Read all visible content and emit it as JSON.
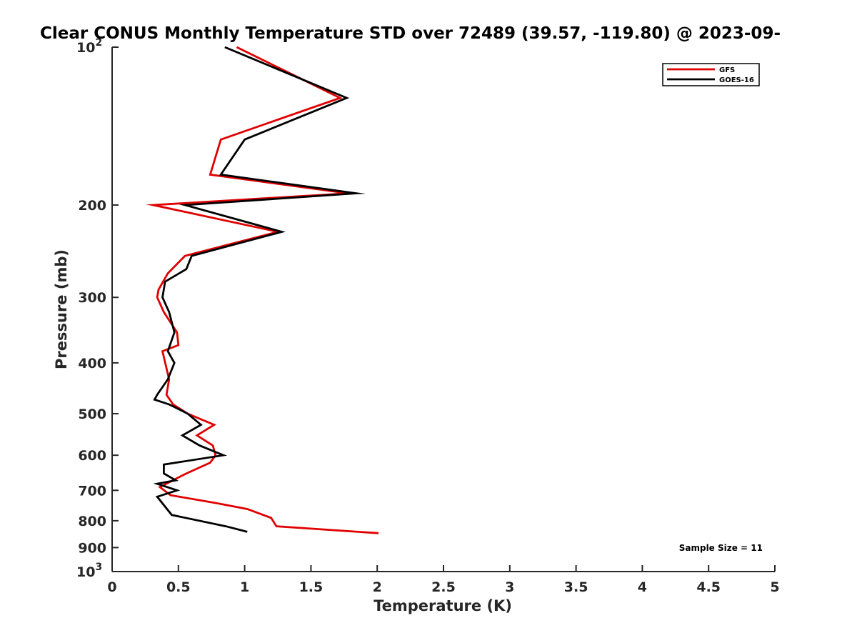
{
  "chart_data": {
    "type": "line",
    "title": "Clear CONUS Monthly Temperature STD over 72489 (39.57, -119.80) @ 2023-09-",
    "xlabel": "Temperature (K)",
    "ylabel": "Pressure (mb)",
    "xlim": [
      0,
      5
    ],
    "ylim": [
      100,
      1000
    ],
    "yscale": "log",
    "y_reversed": true,
    "x_ticks": [
      {
        "value": 0,
        "label": "0"
      },
      {
        "value": 0.5,
        "label": "0.5"
      },
      {
        "value": 1,
        "label": "1"
      },
      {
        "value": 1.5,
        "label": "1.5"
      },
      {
        "value": 2,
        "label": "2"
      },
      {
        "value": 2.5,
        "label": "2.5"
      },
      {
        "value": 3,
        "label": "3"
      },
      {
        "value": 3.5,
        "label": "3.5"
      },
      {
        "value": 4,
        "label": "4"
      },
      {
        "value": 4.5,
        "label": "4.5"
      },
      {
        "value": 5,
        "label": "5"
      }
    ],
    "y_ticks": [
      {
        "value": 100,
        "label": "10",
        "sup": "2"
      },
      {
        "value": 200,
        "label": "200"
      },
      {
        "value": 300,
        "label": "300"
      },
      {
        "value": 400,
        "label": "400"
      },
      {
        "value": 500,
        "label": "500"
      },
      {
        "value": 600,
        "label": "600"
      },
      {
        "value": 700,
        "label": "700"
      },
      {
        "value": 800,
        "label": "800"
      },
      {
        "value": 900,
        "label": "900"
      },
      {
        "value": 1000,
        "label": "10",
        "sup": "3"
      }
    ],
    "legend_position": "top-right",
    "series": [
      {
        "name": "GFS",
        "color": "#e00000",
        "points": [
          [
            0.94,
            100
          ],
          [
            1.72,
            125
          ],
          [
            0.82,
            150
          ],
          [
            0.74,
            175
          ],
          [
            1.78,
            190
          ],
          [
            0.31,
            200
          ],
          [
            1.25,
            225
          ],
          [
            0.55,
            250
          ],
          [
            0.42,
            270
          ],
          [
            0.35,
            290
          ],
          [
            0.34,
            300
          ],
          [
            0.39,
            320
          ],
          [
            0.49,
            350
          ],
          [
            0.5,
            370
          ],
          [
            0.38,
            380
          ],
          [
            0.43,
            430
          ],
          [
            0.41,
            460
          ],
          [
            0.46,
            480
          ],
          [
            0.57,
            500
          ],
          [
            0.77,
            525
          ],
          [
            0.64,
            550
          ],
          [
            0.76,
            575
          ],
          [
            0.78,
            600
          ],
          [
            0.74,
            620
          ],
          [
            0.56,
            650
          ],
          [
            0.36,
            690
          ],
          [
            0.44,
            715
          ],
          [
            0.78,
            740
          ],
          [
            1.02,
            760
          ],
          [
            1.2,
            790
          ],
          [
            1.24,
            820
          ],
          [
            2.01,
            845
          ]
        ]
      },
      {
        "name": "GOES-16",
        "color": "#000000",
        "points": [
          [
            0.85,
            100
          ],
          [
            1.77,
            125
          ],
          [
            1.0,
            150
          ],
          [
            0.82,
            175
          ],
          [
            1.84,
            190
          ],
          [
            0.55,
            200
          ],
          [
            1.28,
            225
          ],
          [
            0.6,
            250
          ],
          [
            0.56,
            265
          ],
          [
            0.4,
            280
          ],
          [
            0.38,
            300
          ],
          [
            0.43,
            320
          ],
          [
            0.47,
            350
          ],
          [
            0.42,
            380
          ],
          [
            0.47,
            400
          ],
          [
            0.42,
            430
          ],
          [
            0.34,
            460
          ],
          [
            0.32,
            470
          ],
          [
            0.43,
            480
          ],
          [
            0.57,
            500
          ],
          [
            0.67,
            525
          ],
          [
            0.53,
            550
          ],
          [
            0.66,
            575
          ],
          [
            0.84,
            600
          ],
          [
            0.39,
            625
          ],
          [
            0.39,
            650
          ],
          [
            0.48,
            670
          ],
          [
            0.34,
            680
          ],
          [
            0.49,
            700
          ],
          [
            0.34,
            720
          ],
          [
            0.45,
            780
          ],
          [
            0.86,
            820
          ],
          [
            1.02,
            840
          ]
        ]
      }
    ],
    "annotation": "Sample Size = 11"
  }
}
